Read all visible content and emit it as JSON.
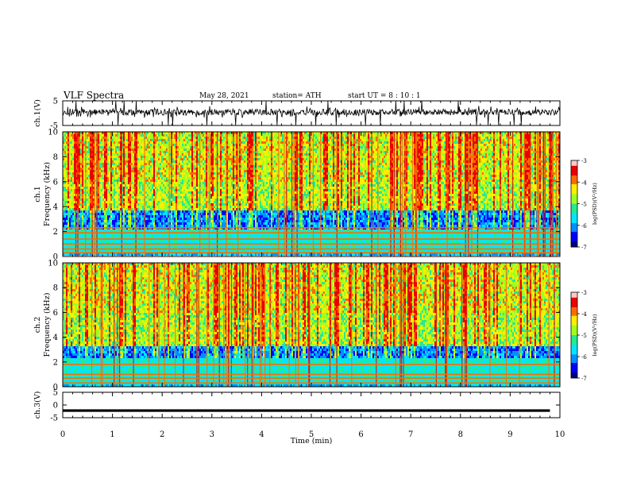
{
  "header": {
    "title": "VLF Spectra",
    "date": "May 28, 2021",
    "station": "station= ATH",
    "start_ut": "start  UT =  8 : 10 : 1"
  },
  "chart_data": [
    {
      "type": "line",
      "panel": "ch1-waveform",
      "ylabel": "ch.1(V)",
      "ylim": [
        -5,
        5
      ],
      "yticks": [
        "5",
        "-5"
      ],
      "xlim": [
        0,
        10
      ],
      "description_values": {
        "baseline": 0.3,
        "typical_range": [
          -2,
          3
        ],
        "max_spikes": [
          -5,
          5
        ]
      }
    },
    {
      "type": "heatmap",
      "panel": "ch1-spectrogram",
      "ylabel": "ch.1\nFrequency  (kHz)",
      "ylabel_line1": "ch.1",
      "ylabel_line2": "Frequency  (kHz)",
      "yticks": [
        "0",
        "2",
        "4",
        "6",
        "8",
        "10"
      ],
      "ylim": [
        0,
        10
      ],
      "xlim": [
        0,
        10
      ],
      "colorbar": {
        "label": "log(PSD)(V²/Hz)",
        "ticks": [
          "-3",
          "-4",
          "-5",
          "-6",
          "-7"
        ],
        "range": [
          -7,
          -3
        ]
      },
      "horizontal_lines_khz": [
        0.3,
        0.6,
        1.0,
        1.4,
        1.9,
        2.3
      ],
      "low_band_khz": [
        2.2,
        3.6
      ]
    },
    {
      "type": "heatmap",
      "panel": "ch2-spectrogram",
      "ylabel_line1": "ch.2",
      "ylabel_line2": "Frequency  (kHz)",
      "yticks": [
        "0",
        "2",
        "4",
        "6",
        "8",
        "10"
      ],
      "ylim": [
        0,
        10
      ],
      "xlim": [
        0,
        10
      ],
      "colorbar": {
        "label": "log(PSD)(V²/Hz)",
        "ticks": [
          "-3",
          "-4",
          "-5",
          "-6",
          "-7"
        ],
        "range": [
          -7,
          -3
        ]
      },
      "horizontal_lines_khz": [
        0.3,
        0.7,
        1.0,
        1.8
      ],
      "low_band_khz": [
        2.3,
        3.2
      ]
    },
    {
      "type": "line",
      "panel": "ch3-waveform",
      "ylabel": "ch.3(V)",
      "ylim": [
        -5,
        5
      ],
      "yticks": [
        "5",
        "0",
        "-5"
      ],
      "xlim": [
        0,
        10
      ],
      "description_values": {
        "level": -2.2,
        "band_halfwidth": 0.5
      }
    }
  ],
  "xaxis": {
    "label": "Time  (min)",
    "ticks": [
      "0",
      "1",
      "2",
      "3",
      "4",
      "5",
      "6",
      "7",
      "8",
      "9",
      "10"
    ],
    "xlim": [
      0,
      10
    ]
  },
  "colors": {
    "colormap": [
      "#00007a",
      "#0000ff",
      "#0090ff",
      "#00e6ff",
      "#28e890",
      "#a0ff20",
      "#ffee00",
      "#ff6a00",
      "#e80000",
      "#ffc8c8"
    ],
    "line": "#000000"
  }
}
